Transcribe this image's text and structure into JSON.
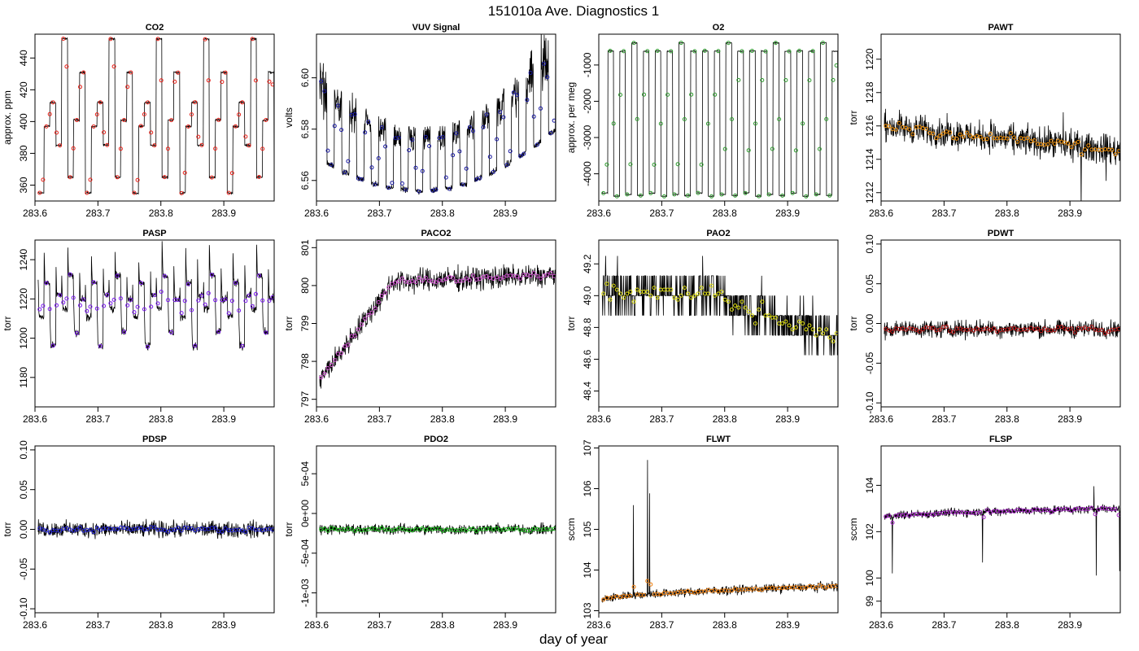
{
  "title": "151010a   Ave. Diagnostics 1",
  "xlabel": "day of year",
  "chart_data": [
    {
      "type": "line",
      "title": "CO2",
      "ylabel": "approx. ppm",
      "xlim": [
        283.6,
        283.98
      ],
      "ylim": [
        350,
        455
      ],
      "xticks": [
        283.6,
        283.7,
        283.8,
        283.9
      ],
      "xtick_labels": [
        "283.6",
        "283.7",
        "283.8",
        "283.9"
      ],
      "yticks": [
        360,
        380,
        400,
        420,
        440
      ],
      "ytick_labels": [
        "360",
        "380",
        "400",
        "420",
        "440"
      ],
      "point_color": "#e8221a",
      "pattern": "cycle",
      "levels": [
        355,
        397,
        412,
        385,
        452,
        365,
        401,
        431
      ],
      "spread": 1,
      "baseline": 0,
      "slope": 0
    },
    {
      "type": "line",
      "title": "VUV Signal",
      "ylabel": "volts",
      "xlim": [
        283.6,
        283.98
      ],
      "ylim": [
        6.552,
        6.617
      ],
      "xticks": [
        283.6,
        283.7,
        283.8,
        283.9
      ],
      "xtick_labels": [
        "283.6",
        "283.7",
        "283.8",
        "283.9"
      ],
      "yticks": [
        6.56,
        6.58,
        6.6
      ],
      "ytick_labels": [
        "6.56",
        "6.58",
        "6.60"
      ],
      "point_color": "#1a1aa0",
      "pattern": "vuv",
      "levels": [],
      "spread": 0.004,
      "baseline": 6.57,
      "slope": 0
    },
    {
      "type": "line",
      "title": "O2",
      "ylabel": "approx. per meg",
      "xlim": [
        283.6,
        283.98
      ],
      "ylim": [
        -4750,
        -150
      ],
      "xticks": [
        283.6,
        283.7,
        283.8,
        283.9
      ],
      "xtick_labels": [
        "283.6",
        "283.7",
        "283.8",
        "283.9"
      ],
      "yticks": [
        -4000,
        -3000,
        -2000,
        -1000
      ],
      "ytick_labels": [
        "-4000",
        "-3000",
        "-2000",
        "-1000"
      ],
      "point_color": "#2e9a2e",
      "pattern": "cycle",
      "levels": [
        -4530,
        -610,
        -4620,
        -620,
        -4570,
        -390,
        -4600,
        -620
      ],
      "spread": 20,
      "baseline": 0,
      "slope": 0
    },
    {
      "type": "line",
      "title": "PAWT",
      "ylabel": "torr",
      "xlim": [
        283.6,
        283.98
      ],
      "ylim": [
        1211.5,
        1221.5
      ],
      "xticks": [
        283.6,
        283.7,
        283.8,
        283.9
      ],
      "xtick_labels": [
        "283.6",
        "283.7",
        "283.8",
        "283.9"
      ],
      "yticks": [
        1212,
        1214,
        1216,
        1218,
        1220
      ],
      "ytick_labels": [
        "1212",
        "1214",
        "1216",
        "1218",
        "1220"
      ],
      "point_color": "#f0900a",
      "pattern": "noise",
      "levels": [],
      "spread": 1.3,
      "baseline": 1216,
      "slope": -1.5
    },
    {
      "type": "line",
      "title": "PASP",
      "ylabel": "torr",
      "xlim": [
        283.6,
        283.98
      ],
      "ylim": [
        1165,
        1250
      ],
      "xticks": [
        283.6,
        283.7,
        283.8,
        283.9
      ],
      "xtick_labels": [
        "283.6",
        "283.7",
        "283.8",
        "283.9"
      ],
      "yticks": [
        1180,
        1200,
        1220,
        1240
      ],
      "ytick_labels": [
        "1180",
        "1200",
        "1220",
        "1240"
      ],
      "point_color": "#7a1aee",
      "pattern": "cycle",
      "levels": [
        1211,
        1228,
        1196,
        1222,
        1215,
        1232,
        1203,
        1220
      ],
      "spread": 3,
      "baseline": 0,
      "slope": 0
    },
    {
      "type": "line",
      "title": "PACO2",
      "ylabel": "torr",
      "xlim": [
        283.6,
        283.98
      ],
      "ylim": [
        796.8,
        801.2
      ],
      "xticks": [
        283.6,
        283.7,
        283.8,
        283.9
      ],
      "xtick_labels": [
        "283.6",
        "283.7",
        "283.8",
        "283.9"
      ],
      "yticks": [
        797,
        798,
        799,
        800,
        801
      ],
      "ytick_labels": [
        "797",
        "798",
        "799",
        "800",
        "801"
      ],
      "point_color": "#d050d0",
      "pattern": "rise",
      "levels": [],
      "spread": 0.45,
      "baseline": 797.5,
      "slope": 0
    },
    {
      "type": "line",
      "title": "PAO2",
      "ylabel": "torr",
      "xlim": [
        283.6,
        283.98
      ],
      "ylim": [
        48.3,
        49.35
      ],
      "xticks": [
        283.6,
        283.7,
        283.8,
        283.9
      ],
      "xtick_labels": [
        "283.6",
        "283.7",
        "283.8",
        "283.9"
      ],
      "yticks": [
        48.4,
        48.6,
        48.8,
        49.0,
        49.2
      ],
      "ytick_labels": [
        "48.4",
        "48.6",
        "48.8",
        "49.0",
        "49.2"
      ],
      "point_color": "#dcdc10",
      "pattern": "fall",
      "levels": [],
      "spread": 0.22,
      "baseline": 49.0,
      "slope": 0
    },
    {
      "type": "line",
      "title": "PDWT",
      "ylabel": "torr",
      "xlim": [
        283.6,
        283.98
      ],
      "ylim": [
        -0.105,
        0.105
      ],
      "xticks": [
        283.6,
        283.7,
        283.8,
        283.9
      ],
      "xtick_labels": [
        "283.6",
        "283.7",
        "283.8",
        "283.9"
      ],
      "yticks": [
        -0.1,
        -0.05,
        0,
        0.05,
        0.1
      ],
      "ytick_labels": [
        "-0.10",
        "-0.05",
        "0.00",
        "0.05",
        "0.10"
      ],
      "point_color": "#c01a1a",
      "pattern": "noise",
      "levels": [],
      "spread": 0.016,
      "baseline": -0.007,
      "slope": 0
    },
    {
      "type": "line",
      "title": "PDSP",
      "ylabel": "torr",
      "xlim": [
        283.6,
        283.98
      ],
      "ylim": [
        -0.105,
        0.105
      ],
      "xticks": [
        283.6,
        283.7,
        283.8,
        283.9
      ],
      "xtick_labels": [
        "283.6",
        "283.7",
        "283.8",
        "283.9"
      ],
      "yticks": [
        -0.1,
        -0.05,
        0,
        0.05,
        0.1
      ],
      "ytick_labels": [
        "-0.10",
        "-0.05",
        "0.00",
        "0.05",
        "0.10"
      ],
      "point_color": "#2020d0",
      "pattern": "noise",
      "levels": [],
      "spread": 0.015,
      "baseline": 0.0,
      "slope": 0
    },
    {
      "type": "line",
      "title": "PDO2",
      "ylabel": "torr",
      "xlim": [
        283.6,
        283.98
      ],
      "ylim": [
        -0.00125,
        0.00085
      ],
      "xticks": [
        283.6,
        283.7,
        283.8,
        283.9
      ],
      "xtick_labels": [
        "283.6",
        "283.7",
        "283.8",
        "283.9"
      ],
      "yticks": [
        -0.001,
        -0.0005,
        0,
        0.0005
      ],
      "ytick_labels": [
        "-1e-03",
        "-5e-04",
        "0e+00",
        "5e-04"
      ],
      "point_color": "#20c020",
      "pattern": "noise",
      "levels": [],
      "spread": 0.0001,
      "baseline": -0.0002,
      "slope": 0
    },
    {
      "type": "line",
      "title": "FLWT",
      "ylabel": "sccm",
      "xlim": [
        283.6,
        283.98
      ],
      "ylim": [
        102.95,
        107.05
      ],
      "xticks": [
        283.6,
        283.7,
        283.8,
        283.9
      ],
      "xtick_labels": [
        "283.6",
        "283.7",
        "283.8",
        "283.9"
      ],
      "yticks": [
        103,
        104,
        105,
        106,
        107
      ],
      "ytick_labels": [
        "103",
        "104",
        "105",
        "106",
        "107"
      ],
      "point_color": "#f08010",
      "pattern": "flow",
      "levels": [],
      "spread": 0.16,
      "baseline": 103.25,
      "slope": 0
    },
    {
      "type": "line",
      "title": "FLSP",
      "ylabel": "sccm",
      "xlim": [
        283.6,
        283.98
      ],
      "ylim": [
        98.5,
        105.7
      ],
      "xticks": [
        283.6,
        283.7,
        283.8,
        283.9
      ],
      "xtick_labels": [
        "283.6",
        "283.7",
        "283.8",
        "283.9"
      ],
      "yticks": [
        99,
        100,
        102,
        104
      ],
      "ytick_labels": [
        "99",
        "100",
        "102",
        "104"
      ],
      "point_color": "#a020c0",
      "pattern": "flow2",
      "levels": [],
      "spread": 0.28,
      "baseline": 102.6,
      "slope": 0
    }
  ]
}
